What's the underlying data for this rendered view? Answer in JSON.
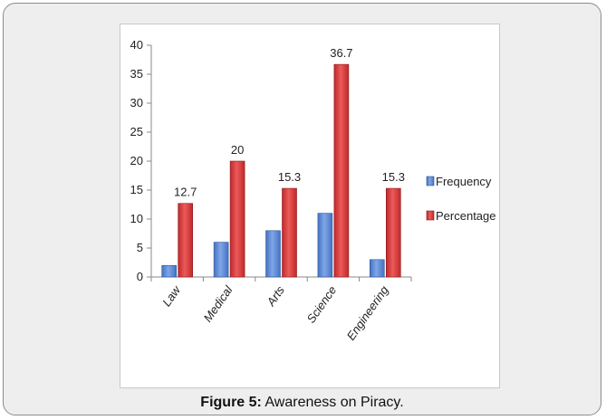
{
  "caption": {
    "label": "Figure 5:",
    "text": "Awareness on Piracy."
  },
  "chart_data": {
    "type": "bar",
    "categories": [
      "Law",
      "Medical",
      "Arts",
      "Science",
      "Engineering"
    ],
    "series": [
      {
        "name": "Frequency",
        "values": [
          2,
          6,
          8,
          11,
          3
        ],
        "color": "#4472c4"
      },
      {
        "name": "Percentage",
        "values": [
          12.7,
          20,
          15.3,
          36.7,
          15.3
        ],
        "color": "#c0282a"
      }
    ],
    "data_labels": [
      "12.7",
      "20",
      "15.3",
      "36.7",
      "15.3"
    ],
    "y_ticks": [
      "0",
      "5",
      "10",
      "15",
      "20",
      "25",
      "30",
      "35",
      "40"
    ],
    "ylim": [
      0,
      40
    ],
    "title": "",
    "xlabel": "",
    "ylabel": "",
    "grid": false,
    "legend_position": "right"
  }
}
